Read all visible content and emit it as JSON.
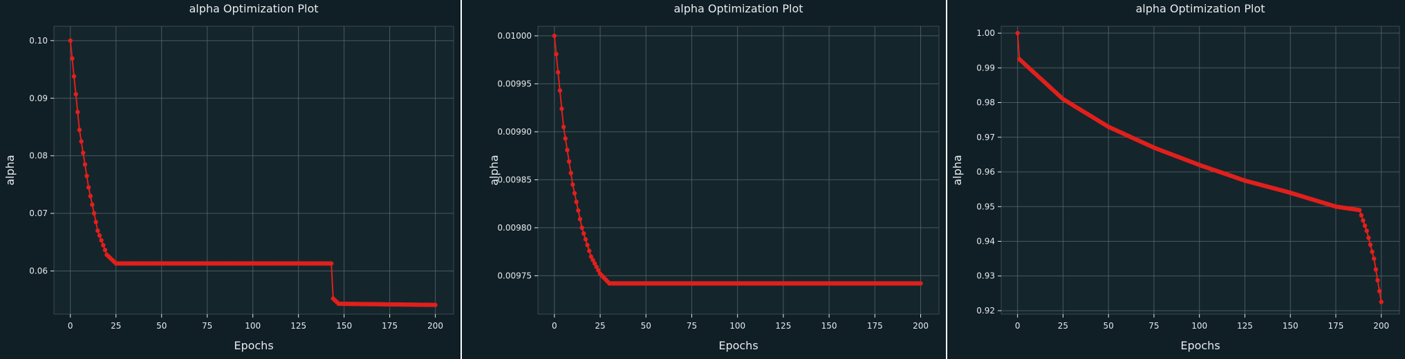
{
  "colors": {
    "figure_bg": "#0f1d24",
    "axes_bg": "#15252c",
    "grid": "#5b6b70",
    "spine": "#3a4a50",
    "text": "#e6ecee",
    "series": "#e0201c"
  },
  "chart_data": [
    {
      "type": "line",
      "title": "alpha Optimization Plot",
      "xlabel": "Epochs",
      "ylabel": "alpha",
      "xlim": [
        -9,
        210
      ],
      "ylim": [
        0.0525,
        0.1025
      ],
      "xticks": [
        0,
        25,
        50,
        75,
        100,
        125,
        150,
        175,
        200
      ],
      "yticks": [
        0.06,
        0.07,
        0.08,
        0.09,
        0.1
      ],
      "ytick_labels": [
        "0.06",
        "0.07",
        "0.08",
        "0.09",
        "0.10"
      ],
      "grid": true,
      "marker": "circle",
      "shape": "exp_decay_then_step",
      "series": [
        {
          "points": [
            [
              0,
              0.1
            ],
            [
              5,
              0.0845
            ],
            [
              10,
              0.0745
            ],
            [
              15,
              0.067
            ],
            [
              20,
              0.0628
            ],
            [
              25,
              0.0613
            ],
            [
              143,
              0.0613
            ],
            [
              144,
              0.0552
            ],
            [
              147,
              0.0543
            ],
            [
              200,
              0.0541
            ]
          ]
        }
      ]
    },
    {
      "type": "line",
      "title": "alpha Optimization Plot",
      "xlabel": "Epochs",
      "ylabel": "alpha",
      "xlim": [
        -9,
        210
      ],
      "ylim": [
        0.00971,
        0.01001
      ],
      "xticks": [
        0,
        25,
        50,
        75,
        100,
        125,
        150,
        175,
        200
      ],
      "yticks": [
        0.00975,
        0.0098,
        0.00985,
        0.0099,
        0.00995,
        0.01
      ],
      "ytick_labels": [
        "0.00975",
        "0.00980",
        "0.00985",
        "0.00990",
        "0.00995",
        "0.01000"
      ],
      "grid": true,
      "marker": "circle",
      "shape": "exp_decay",
      "series": [
        {
          "points": [
            [
              0,
              0.01
            ],
            [
              5,
              0.009905
            ],
            [
              10,
              0.009845
            ],
            [
              15,
              0.0098
            ],
            [
              20,
              0.00977
            ],
            [
              25,
              0.009752
            ],
            [
              30,
              0.009742
            ],
            [
              200,
              0.009742
            ]
          ]
        }
      ]
    },
    {
      "type": "line",
      "title": "alpha Optimization Plot",
      "xlabel": "Epochs",
      "ylabel": "alpha",
      "xlim": [
        -9,
        210
      ],
      "ylim": [
        0.919,
        1.002
      ],
      "xticks": [
        0,
        25,
        50,
        75,
        100,
        125,
        150,
        175,
        200
      ],
      "yticks": [
        0.92,
        0.93,
        0.94,
        0.95,
        0.96,
        0.97,
        0.98,
        0.99,
        1.0
      ],
      "ytick_labels": [
        "0.92",
        "0.93",
        "0.94",
        "0.95",
        "0.96",
        "0.97",
        "0.98",
        "0.99",
        "1.00"
      ],
      "grid": true,
      "marker": "circle",
      "shape": "sqrt_decay_then_drop",
      "series": [
        {
          "points": [
            [
              0,
              1.0
            ],
            [
              1,
              0.9925
            ],
            [
              25,
              0.981
            ],
            [
              50,
              0.973
            ],
            [
              75,
              0.967
            ],
            [
              100,
              0.962
            ],
            [
              125,
              0.9575
            ],
            [
              150,
              0.954
            ],
            [
              175,
              0.95
            ],
            [
              188,
              0.949
            ],
            [
              192,
              0.943
            ],
            [
              196,
              0.935
            ],
            [
              200,
              0.9225
            ]
          ]
        }
      ]
    }
  ]
}
